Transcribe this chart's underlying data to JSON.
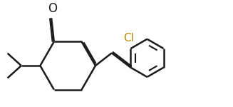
{
  "bg_color": "#ffffff",
  "line_color": "#1a1a1a",
  "line_width": 1.8,
  "dbo": 0.055,
  "label_O": "O",
  "label_Cl": "Cl",
  "font_size_O": 12,
  "font_size_Cl": 11
}
